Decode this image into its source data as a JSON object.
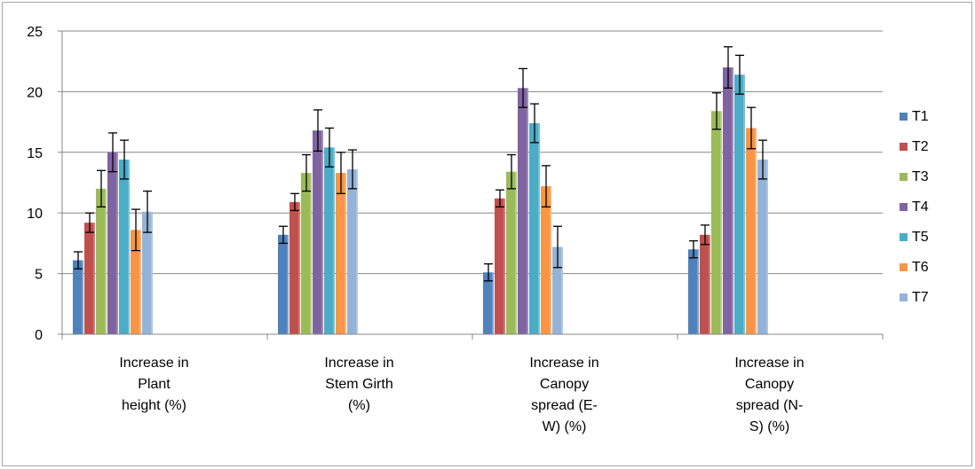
{
  "chart_data": {
    "type": "bar",
    "title": "",
    "xlabel": "",
    "ylabel": "",
    "ylim": [
      0,
      25
    ],
    "yticks": [
      0,
      5,
      10,
      15,
      20,
      25
    ],
    "grid": true,
    "legend": "right",
    "categories": [
      [
        "Increase in",
        "Plant",
        "height (%)"
      ],
      [
        "Increase in",
        "Stem Girth",
        "(%)"
      ],
      [
        "Increase in",
        "Canopy",
        "spread (E-",
        "W) (%)"
      ],
      [
        "Increase in",
        "Canopy",
        "spread (N-",
        "S) (%)"
      ]
    ],
    "series": [
      {
        "name": "T1",
        "color": "#4f81bd",
        "values": [
          6.1,
          8.2,
          5.1,
          7.0
        ],
        "errors": [
          0.7,
          0.7,
          0.7,
          0.7
        ]
      },
      {
        "name": "T2",
        "color": "#c0504d",
        "values": [
          9.2,
          10.9,
          11.2,
          8.2
        ],
        "errors": [
          0.8,
          0.7,
          0.7,
          0.8
        ]
      },
      {
        "name": "T3",
        "color": "#9bbb59",
        "values": [
          12.0,
          13.3,
          13.4,
          18.4
        ],
        "errors": [
          1.5,
          1.5,
          1.4,
          1.5
        ]
      },
      {
        "name": "T4",
        "color": "#8064a2",
        "values": [
          15.0,
          16.8,
          20.3,
          22.0
        ],
        "errors": [
          1.6,
          1.7,
          1.6,
          1.7
        ]
      },
      {
        "name": "T5",
        "color": "#4bacc6",
        "values": [
          14.4,
          15.4,
          17.4,
          21.4
        ],
        "errors": [
          1.6,
          1.6,
          1.6,
          1.6
        ]
      },
      {
        "name": "T6",
        "color": "#f79646",
        "values": [
          8.6,
          13.3,
          12.2,
          17.0
        ],
        "errors": [
          1.7,
          1.7,
          1.7,
          1.7
        ]
      },
      {
        "name": "T7",
        "color": "#95b3d7",
        "values": [
          10.1,
          13.6,
          7.2,
          14.4
        ],
        "errors": [
          1.7,
          1.6,
          1.7,
          1.6
        ]
      }
    ]
  }
}
